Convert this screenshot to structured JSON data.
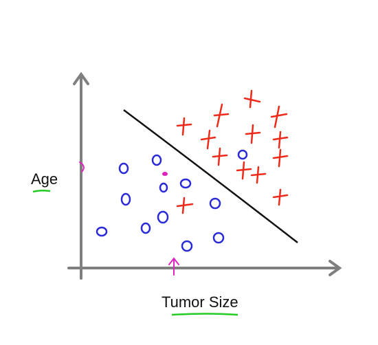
{
  "axes": {
    "y_label": "Age",
    "x_label": "Tumor Size"
  }
}
